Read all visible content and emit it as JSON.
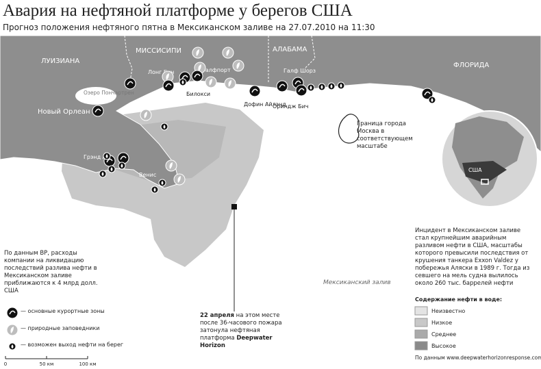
{
  "header": {
    "title": "Авария на нефтяной платформе у берегов США",
    "subtitle": "Прогноз положения нефтяного пятна в Мексиканском заливе на 27.07.2010 на 11:30"
  },
  "places": {
    "louisiana": "ЛУИЗИАНА",
    "mississippi": "МИССИСИПИ",
    "alabama": "АЛАБАМА",
    "florida": "ФЛОРИДА",
    "lake": "Озеро Пончартрен",
    "new_orleans": "Новый Орлеан",
    "long_beach": "Лонг Бич",
    "gulfport": "Галфпорт",
    "biloxi": "Билокси",
    "gulf_shores": "Галф Шорз",
    "dauphin": "Дофин Айлэнд",
    "orange_beach": "Ориндж Бич",
    "grand_isle": "Грэнд Айл",
    "venice": "Венис",
    "usa": "США",
    "gulf": "Мексиканский залив"
  },
  "moscow_note": "Граница города Москва в соответствующем масштабе",
  "bp_note": "По данным BP, расходы компании на ликвидацию последствий разлива нефти в Мексиканском заливе приближаются к 4 млрд долл. США",
  "incident_note": "Инцидент в Мексиканском заливе стал крупнейшим аварийным разливом нефти в США, масштабы которого превысили последствия от крушения танкера Exxon Valdez у побережья Аляски в 1989 г. Тогда из севшего на мель судна вылилось около 260 тыс. баррелей нефти",
  "callout": {
    "date": "22 апреля",
    "text": "на этом месте после 36-часового пожара затонула нефтяная платформа",
    "name": "Deepwater Horizon"
  },
  "legend": {
    "items": [
      "— основные курортные зоны",
      "— природные заповедники",
      "— возможен выход нефти на берег"
    ]
  },
  "oil_legend": {
    "title": "Содержание нефти в воде:",
    "items": [
      "Неизвестно",
      "Низкое",
      "Среднее",
      "Высокое"
    ]
  },
  "source": "По данным www.deepwaterhorizonresponse.com",
  "scale": {
    "labels": [
      "0",
      "50 км",
      "100 км"
    ]
  }
}
